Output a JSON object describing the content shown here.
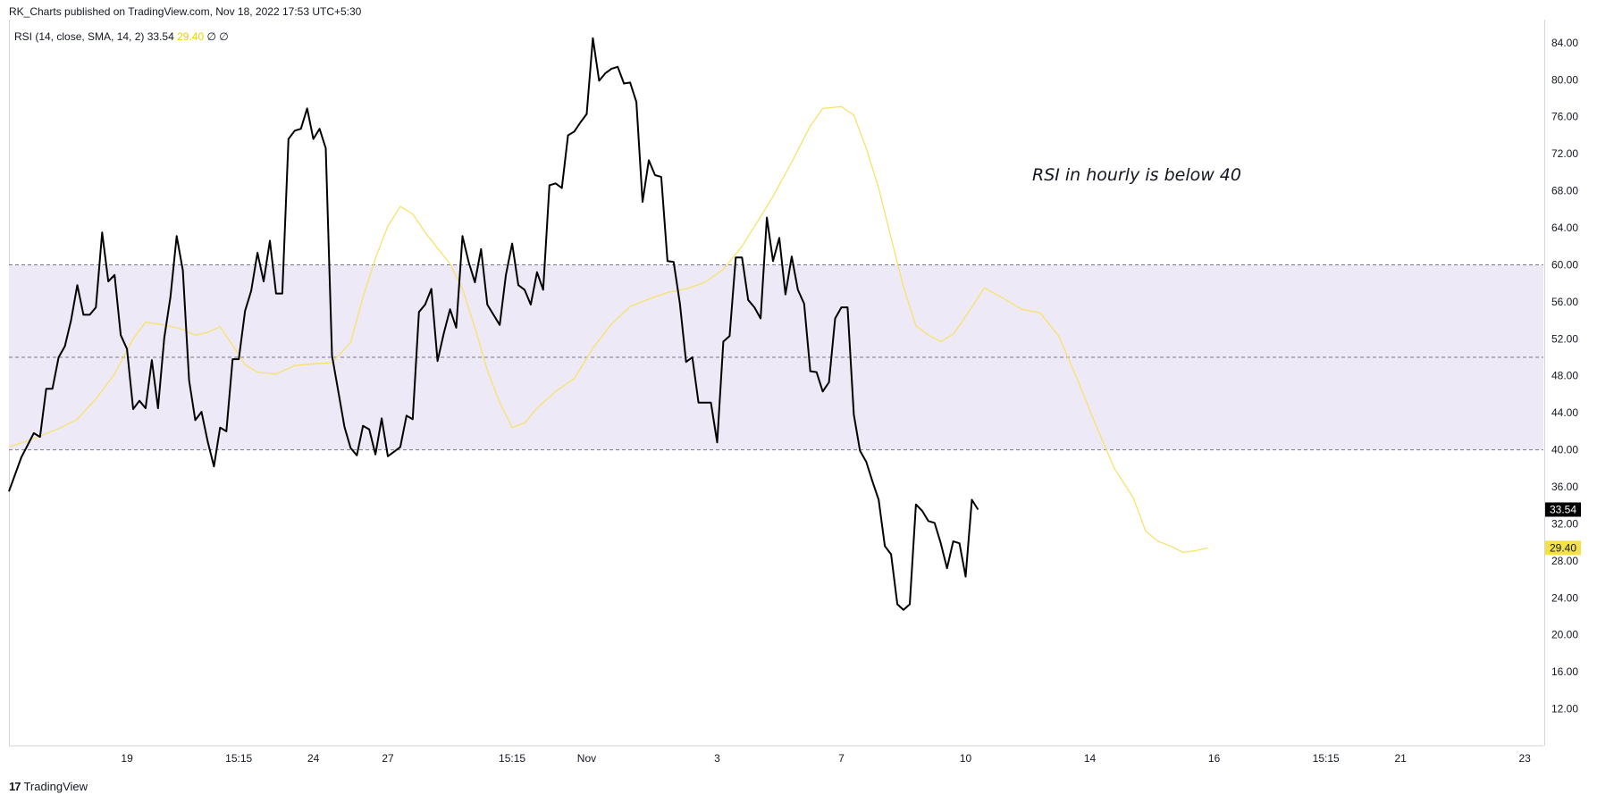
{
  "header": {
    "published": "RK_Charts published on TradingView.com, Nov 18, 2022 17:53 UTC+5:30"
  },
  "legend": {
    "name": "RSI (14, close, SMA, 14, 2)",
    "rsi_value": "33.54",
    "sma_value": "29.40",
    "extra1": "∅",
    "extra2": "∅"
  },
  "annotation": "RSI in hourly is below 40",
  "footer": {
    "logo": "17",
    "brand": "TradingView"
  },
  "colors": {
    "rsi": "#000000",
    "sma": "#f7e26b",
    "band": "#ede9f7",
    "rsi_badge": "#000000",
    "sma_badge": "#f5e04a"
  },
  "chart_data": {
    "type": "line",
    "y_ticks": [
      "84.00",
      "80.00",
      "76.00",
      "72.00",
      "68.00",
      "64.00",
      "60.00",
      "56.00",
      "52.00",
      "48.00",
      "44.00",
      "40.00",
      "36.00",
      "32.00",
      "28.00",
      "24.00",
      "20.00",
      "16.00",
      "12.00"
    ],
    "ylim": [
      8.0,
      86.5
    ],
    "x_ticks": [
      {
        "label": "19",
        "x": 17
      },
      {
        "label": "15:15",
        "x": 35
      },
      {
        "label": "24",
        "x": 47
      },
      {
        "label": "27",
        "x": 59
      },
      {
        "label": "15:15",
        "x": 79
      },
      {
        "label": "Nov",
        "x": 91
      },
      {
        "label": "3",
        "x": 112
      },
      {
        "label": "7",
        "x": 132
      },
      {
        "label": "10",
        "x": 152
      },
      {
        "label": "14",
        "x": 172
      },
      {
        "label": "16",
        "x": 192
      },
      {
        "label": "15:15",
        "x": 210
      },
      {
        "label": "21",
        "x": 222
      },
      {
        "label": "23",
        "x": 242
      }
    ],
    "xlim": [
      -2,
      245
    ],
    "bands": [
      {
        "from": 40,
        "to": 60
      }
    ],
    "levels": [
      60,
      50,
      40
    ],
    "series": [
      {
        "name": "RSI",
        "values": [
          [
            -2,
            35.5
          ],
          [
            0,
            39.2
          ],
          [
            1,
            40.5
          ],
          [
            2,
            41.8
          ],
          [
            3,
            41.4
          ],
          [
            4,
            46.6
          ],
          [
            5,
            46.6
          ],
          [
            6,
            50
          ],
          [
            7,
            51.2
          ],
          [
            8,
            54
          ],
          [
            9,
            57.8
          ],
          [
            10,
            54.6
          ],
          [
            11,
            54.6
          ],
          [
            12,
            55.4
          ],
          [
            13,
            63.5
          ],
          [
            14,
            58.2
          ],
          [
            15,
            58.9
          ],
          [
            16,
            52.4
          ],
          [
            17,
            50.9
          ],
          [
            18,
            44.4
          ],
          [
            19,
            45.3
          ],
          [
            20,
            44.5
          ],
          [
            21,
            49.7
          ],
          [
            22,
            44.5
          ],
          [
            23,
            52.1
          ],
          [
            24,
            56.5
          ],
          [
            25,
            63.1
          ],
          [
            26,
            59.4
          ],
          [
            27,
            47.5
          ],
          [
            28,
            43.2
          ],
          [
            29,
            44.1
          ],
          [
            30,
            40.9
          ],
          [
            31,
            38.2
          ],
          [
            32,
            42.4
          ],
          [
            33,
            42.0
          ],
          [
            34,
            49.8
          ],
          [
            35,
            49.8
          ],
          [
            36,
            55
          ],
          [
            37,
            57.2
          ],
          [
            38,
            61.3
          ],
          [
            39,
            58.2
          ],
          [
            40,
            62.6
          ],
          [
            41,
            56.9
          ],
          [
            42,
            56.9
          ],
          [
            43,
            73.6
          ],
          [
            44,
            74.5
          ],
          [
            45,
            74.7
          ],
          [
            46,
            76.9
          ],
          [
            47,
            73.6
          ],
          [
            48,
            74.7
          ],
          [
            49,
            72.6
          ],
          [
            50,
            50.2
          ],
          [
            51,
            46.4
          ],
          [
            52,
            42.5
          ],
          [
            53,
            40.2
          ],
          [
            54,
            39.4
          ],
          [
            55,
            42.6
          ],
          [
            56,
            42.2
          ],
          [
            57,
            39.5
          ],
          [
            58,
            43.4
          ],
          [
            59,
            39.3
          ],
          [
            60,
            39.8
          ],
          [
            61,
            40.3
          ],
          [
            62,
            43.7
          ],
          [
            63,
            43.3
          ],
          [
            64,
            54.9
          ],
          [
            65,
            55.7
          ],
          [
            66,
            57.4
          ],
          [
            67,
            49.6
          ],
          [
            68,
            52.6
          ],
          [
            69,
            55.2
          ],
          [
            70,
            53.2
          ],
          [
            71,
            63.1
          ],
          [
            72,
            60.3
          ],
          [
            73,
            58.1
          ],
          [
            74,
            61.7
          ],
          [
            75,
            55.7
          ],
          [
            76,
            54.6
          ],
          [
            77,
            53.5
          ],
          [
            78,
            58.9
          ],
          [
            79,
            62.3
          ],
          [
            80,
            57.8
          ],
          [
            81,
            57.3
          ],
          [
            82,
            55.7
          ],
          [
            83,
            59.2
          ],
          [
            84,
            57.3
          ],
          [
            85,
            68.6
          ],
          [
            86,
            68.8
          ],
          [
            87,
            68.3
          ],
          [
            88,
            74
          ],
          [
            89,
            74.4
          ],
          [
            90,
            75.4
          ],
          [
            91,
            76.3
          ],
          [
            92,
            84.5
          ],
          [
            93,
            79.9
          ],
          [
            94,
            80.7
          ],
          [
            95,
            81.2
          ],
          [
            96,
            81.4
          ],
          [
            97,
            79.6
          ],
          [
            98,
            79.7
          ],
          [
            99,
            77.6
          ],
          [
            100,
            66.8
          ],
          [
            101,
            71.3
          ],
          [
            102,
            69.7
          ],
          [
            103,
            69.5
          ],
          [
            104,
            60.4
          ],
          [
            105,
            60.3
          ],
          [
            106,
            55.8
          ],
          [
            107,
            49.5
          ],
          [
            108,
            50
          ],
          [
            109,
            45.1
          ],
          [
            110,
            45.1
          ],
          [
            111,
            45.1
          ],
          [
            112,
            40.8
          ],
          [
            113,
            51.7
          ],
          [
            114,
            52.3
          ],
          [
            115,
            60.8
          ],
          [
            116,
            60.8
          ],
          [
            117,
            56.2
          ],
          [
            118,
            55.4
          ],
          [
            119,
            54.2
          ],
          [
            120,
            65.1
          ],
          [
            121,
            60.4
          ],
          [
            122,
            62.9
          ],
          [
            123,
            56.8
          ],
          [
            124,
            60.9
          ],
          [
            125,
            57.3
          ],
          [
            126,
            55.8
          ],
          [
            127,
            48.5
          ],
          [
            128,
            48.4
          ],
          [
            129,
            46.3
          ],
          [
            130,
            47.3
          ],
          [
            131,
            54.2
          ],
          [
            132,
            55.4
          ],
          [
            133,
            55.4
          ],
          [
            134,
            43.8
          ],
          [
            135,
            39.9
          ],
          [
            136,
            38.7
          ],
          [
            137,
            36.6
          ],
          [
            138,
            34.6
          ],
          [
            139,
            29.6
          ],
          [
            140,
            28.7
          ],
          [
            141,
            23.3
          ],
          [
            142,
            22.7
          ],
          [
            143,
            23.3
          ],
          [
            144,
            34.1
          ],
          [
            145,
            33.4
          ],
          [
            146,
            32.3
          ],
          [
            147,
            32.1
          ],
          [
            148,
            29.9
          ],
          [
            149,
            27.2
          ],
          [
            150,
            30.1
          ],
          [
            151,
            29.9
          ],
          [
            152,
            26.3
          ],
          [
            153,
            34.6
          ],
          [
            154,
            33.54
          ]
        ]
      },
      {
        "name": "SMA",
        "values": [
          [
            -2,
            40.3
          ],
          [
            2,
            41.2
          ],
          [
            6,
            42.3
          ],
          [
            9,
            43.3
          ],
          [
            12,
            45.5
          ],
          [
            15,
            48.2
          ],
          [
            18,
            52
          ],
          [
            20,
            53.8
          ],
          [
            23,
            53.5
          ],
          [
            26,
            53
          ],
          [
            28,
            52.4
          ],
          [
            30,
            52.7
          ],
          [
            32,
            53.3
          ],
          [
            34,
            51.3
          ],
          [
            36,
            49.2
          ],
          [
            38,
            48.4
          ],
          [
            41,
            48.2
          ],
          [
            44,
            49.1
          ],
          [
            47,
            49.3
          ],
          [
            50,
            49.4
          ],
          [
            53,
            51.6
          ],
          [
            55,
            56.5
          ],
          [
            57,
            60.7
          ],
          [
            59,
            64.2
          ],
          [
            61,
            66.3
          ],
          [
            63,
            65.5
          ],
          [
            65,
            63.5
          ],
          [
            67,
            61.8
          ],
          [
            69,
            60.1
          ],
          [
            71,
            57.4
          ],
          [
            73,
            53.2
          ],
          [
            75,
            48.6
          ],
          [
            77,
            45.1
          ],
          [
            79,
            42.4
          ],
          [
            81,
            42.9
          ],
          [
            83,
            44.5
          ],
          [
            86,
            46.3
          ],
          [
            89,
            47.7
          ],
          [
            92,
            51
          ],
          [
            95,
            53.6
          ],
          [
            98,
            55.5
          ],
          [
            101,
            56.3
          ],
          [
            104,
            57
          ],
          [
            107,
            57.4
          ],
          [
            110,
            58.1
          ],
          [
            113,
            59.5
          ],
          [
            116,
            62
          ],
          [
            119,
            65.2
          ],
          [
            121,
            67.4
          ],
          [
            124,
            71.1
          ],
          [
            127,
            75
          ],
          [
            129,
            76.9
          ],
          [
            132,
            77.1
          ],
          [
            134,
            76.2
          ],
          [
            136,
            72.6
          ],
          [
            138,
            68.3
          ],
          [
            140,
            62.9
          ],
          [
            142,
            57.6
          ],
          [
            144,
            53.4
          ],
          [
            146,
            52.4
          ],
          [
            148,
            51.7
          ],
          [
            150,
            52.5
          ],
          [
            152,
            54.4
          ],
          [
            155,
            57.5
          ],
          [
            158,
            56.4
          ],
          [
            161,
            55.2
          ],
          [
            164,
            54.8
          ],
          [
            167,
            52.3
          ],
          [
            170,
            47.6
          ],
          [
            173,
            42.6
          ],
          [
            176,
            37.9
          ],
          [
            179,
            34.8
          ],
          [
            181,
            31.2
          ],
          [
            183,
            30.1
          ],
          [
            185,
            29.6
          ],
          [
            187,
            28.9
          ],
          [
            189,
            29.1
          ],
          [
            191,
            29.4
          ]
        ]
      }
    ],
    "last_values": {
      "rsi": 33.54,
      "sma": 29.4
    }
  }
}
